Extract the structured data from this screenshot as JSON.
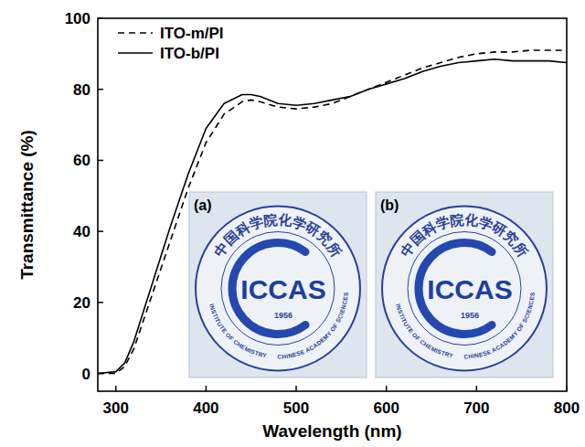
{
  "chart_data": {
    "type": "line",
    "x_label": "Wavelength (nm)",
    "y_label": "Transmittance (%)",
    "x": [
      280,
      300,
      310,
      320,
      340,
      360,
      380,
      400,
      420,
      440,
      450,
      460,
      480,
      500,
      520,
      540,
      560,
      580,
      600,
      620,
      640,
      660,
      680,
      700,
      720,
      740,
      760,
      780,
      800
    ],
    "series": [
      {
        "name": "ITO-m/PI",
        "color": "#000000",
        "line_style": "dashed",
        "values": [
          0,
          0,
          2,
          7,
          22,
          37,
          52,
          65,
          73,
          76.5,
          77,
          76.5,
          75,
          74.5,
          75,
          76,
          78,
          80,
          82,
          84,
          86,
          87.5,
          89,
          90,
          90.5,
          90.5,
          91,
          91,
          91
        ]
      },
      {
        "name": "ITO-b/PI",
        "color": "#000000",
        "line_style": "solid",
        "values": [
          0,
          0.5,
          3,
          9,
          25,
          41,
          56,
          69,
          76,
          78.5,
          78.5,
          78,
          76,
          75.5,
          76,
          77,
          78,
          80,
          81.5,
          83,
          85,
          86.5,
          87.5,
          88,
          88.5,
          88,
          88,
          88,
          87.5
        ]
      }
    ],
    "xlim": [
      280,
      800
    ],
    "xticks": [
      300,
      400,
      500,
      600,
      700,
      800
    ],
    "ylim": [
      -5,
      100
    ],
    "yticks": [
      0,
      20,
      40,
      60,
      80,
      100
    ],
    "grid": false,
    "legend": "upper left",
    "insets": [
      {
        "label": "(a)",
        "title": "中国科学院化学研究所",
        "logo": "ICCAS",
        "year": "1956",
        "ring_left": "INSTITUTE OF CHEMISTRY",
        "ring_right": "CHINESE ACADEMY OF SCIENCES"
      },
      {
        "label": "(b)",
        "title": "中国科学院化学研究所",
        "logo": "ICCAS",
        "year": "1956",
        "ring_left": "INSTITUTE OF CHEMISTRY",
        "ring_right": "CHINESE ACADEMY OF SCIENCES"
      }
    ]
  }
}
